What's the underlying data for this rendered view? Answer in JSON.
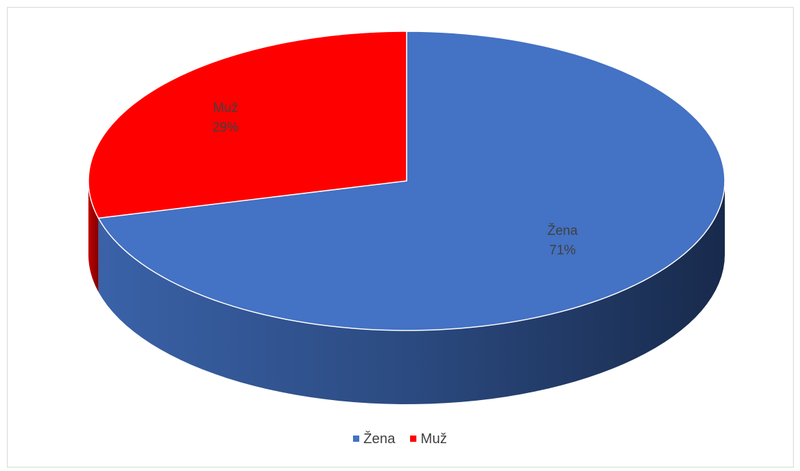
{
  "chart_data": {
    "type": "pie",
    "style": "3d",
    "slices": [
      {
        "label": "Žena",
        "value": 71,
        "percent_label": "71%",
        "color": "#4472C4"
      },
      {
        "label": "Muž",
        "value": 29,
        "percent_label": "29%",
        "color": "#FF0000"
      }
    ],
    "legend": {
      "placement": "bottom",
      "entries": [
        {
          "label": "Žena",
          "color": "#4472C4"
        },
        {
          "label": "Muž",
          "color": "#FF0000"
        }
      ]
    },
    "title": ""
  }
}
